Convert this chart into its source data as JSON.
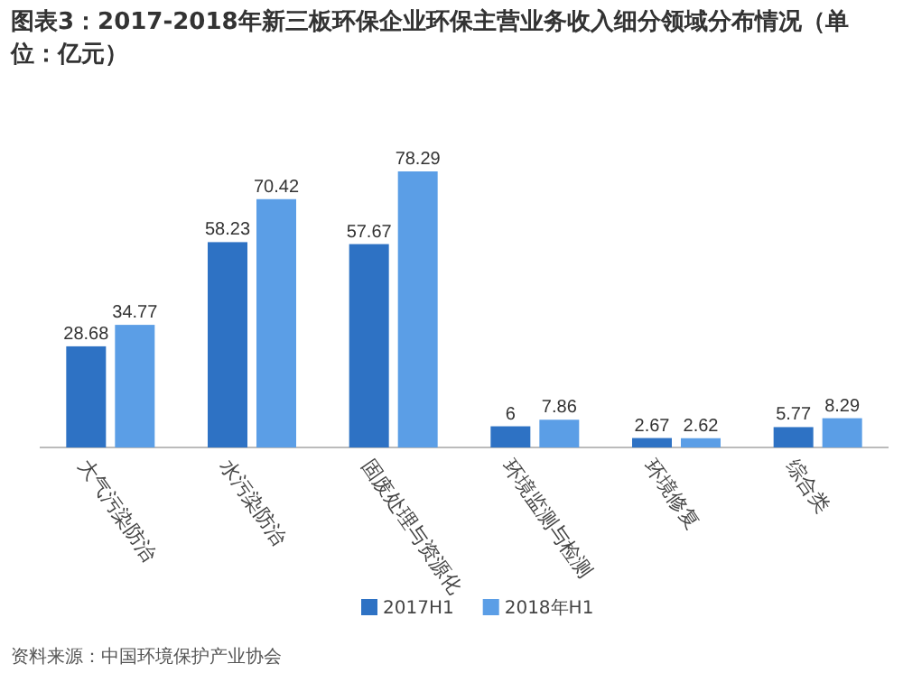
{
  "chart_data": {
    "type": "bar",
    "title": "图表3：2017-2018年新三板环保企业环保主营业务收入细分领域分布情况（单位：亿元）",
    "categories": [
      "大气污染防治",
      "水污染防治",
      "固废处理与资源化",
      "环境监测与检测",
      "环境修复",
      "综合类"
    ],
    "series": [
      {
        "name": "2017H1",
        "color": "#2e72c4",
        "values": [
          28.68,
          58.23,
          57.67,
          6,
          2.67,
          5.77
        ]
      },
      {
        "name": "2018年H1",
        "color": "#5b9ee6",
        "values": [
          34.77,
          70.42,
          78.29,
          7.86,
          2.62,
          8.29
        ]
      }
    ],
    "data_labels": true,
    "legend": "bottom",
    "annotations": [
      "资料来源：中国环境保护产业协会"
    ]
  }
}
